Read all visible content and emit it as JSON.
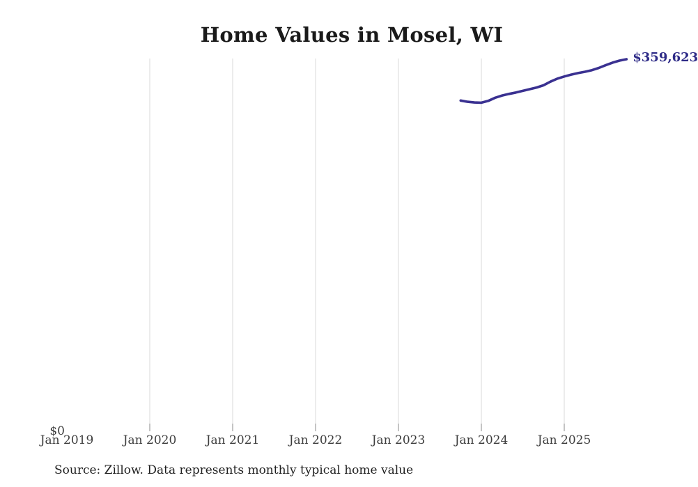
{
  "page": {
    "title": "Home Values in Mosel, WI",
    "source_note": "Source: Zillow. Data represents monthly typical home value"
  },
  "chart_data": {
    "type": "line",
    "title": "Home Values in Mosel, WI",
    "x": [
      "Oct 2023",
      "Nov 2023",
      "Dec 2023",
      "Jan 2024",
      "Feb 2024",
      "Mar 2024",
      "Apr 2024",
      "May 2024",
      "Jun 2024",
      "Jul 2024",
      "Aug 2024",
      "Sep 2024",
      "Oct 2024",
      "Nov 2024",
      "Dec 2024",
      "Jan 2025",
      "Feb 2025",
      "Mar 2025",
      "Apr 2025",
      "May 2025",
      "Jun 2025",
      "Jul 2025",
      "Aug 2025",
      "Sep 2025",
      "Oct 2025"
    ],
    "values": [
      319600,
      318400,
      317700,
      317500,
      319300,
      322300,
      324500,
      326000,
      327400,
      329000,
      330600,
      332200,
      334400,
      337900,
      340800,
      342900,
      344700,
      346200,
      347500,
      349000,
      351200,
      353800,
      356300,
      358300,
      359623
    ],
    "series_name": "Typical home value",
    "end_label": "$359,623",
    "y_zero_label": "$0",
    "ylim": [
      0,
      359623
    ],
    "grid": "vertical-only",
    "legend": "none",
    "x_axis_ticks": [
      {
        "label": "Jan 2019",
        "year": 2019,
        "gridline": false
      },
      {
        "label": "Jan 2020",
        "year": 2020,
        "gridline": true
      },
      {
        "label": "Jan 2021",
        "year": 2021,
        "gridline": true
      },
      {
        "label": "Jan 2022",
        "year": 2022,
        "gridline": true
      },
      {
        "label": "Jan 2023",
        "year": 2023,
        "gridline": true
      },
      {
        "label": "Jan 2024",
        "year": 2024,
        "gridline": true
      },
      {
        "label": "Jan 2025",
        "year": 2025,
        "gridline": true
      }
    ],
    "colors": {
      "line": "#3a3191",
      "end_label": "#2e2b87",
      "gridline": "#d9d9d9",
      "tick": "#8a8a8a",
      "axis_label": "#3d3d3d",
      "title": "#1a1a1a",
      "source": "#1f1f1f",
      "background": "#ffffff"
    }
  }
}
